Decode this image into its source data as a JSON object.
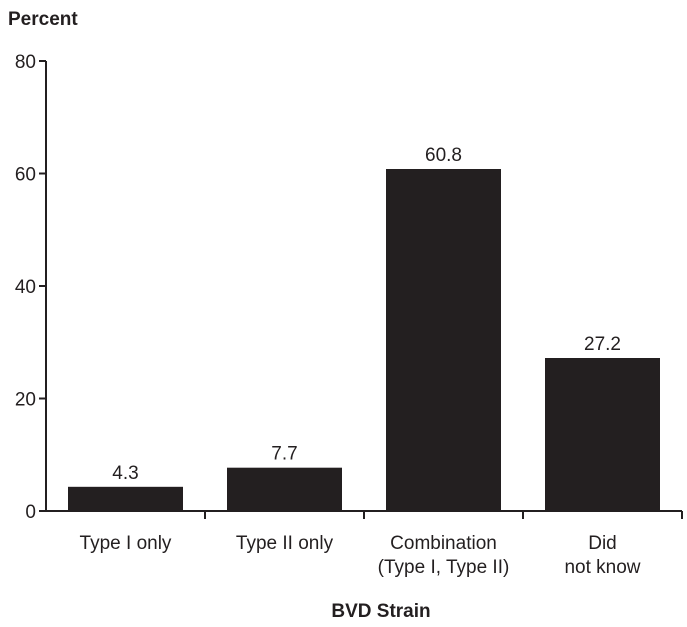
{
  "chart_data": {
    "type": "bar",
    "categories": [
      [
        "Type I only"
      ],
      [
        "Type II only"
      ],
      [
        "Combination",
        "(Type I, Type II)"
      ],
      [
        "Did",
        "not know"
      ]
    ],
    "values": [
      4.3,
      7.7,
      60.8,
      27.2
    ],
    "value_labels": [
      "4.3",
      "7.7",
      "60.8",
      "27.2"
    ],
    "ylabel": "Percent",
    "xlabel": "BVD Strain",
    "ylim": [
      0,
      80
    ],
    "yticks": [
      "0",
      "20",
      "40",
      "60",
      "80"
    ],
    "bar_color": "#231f20",
    "grid": false
  }
}
